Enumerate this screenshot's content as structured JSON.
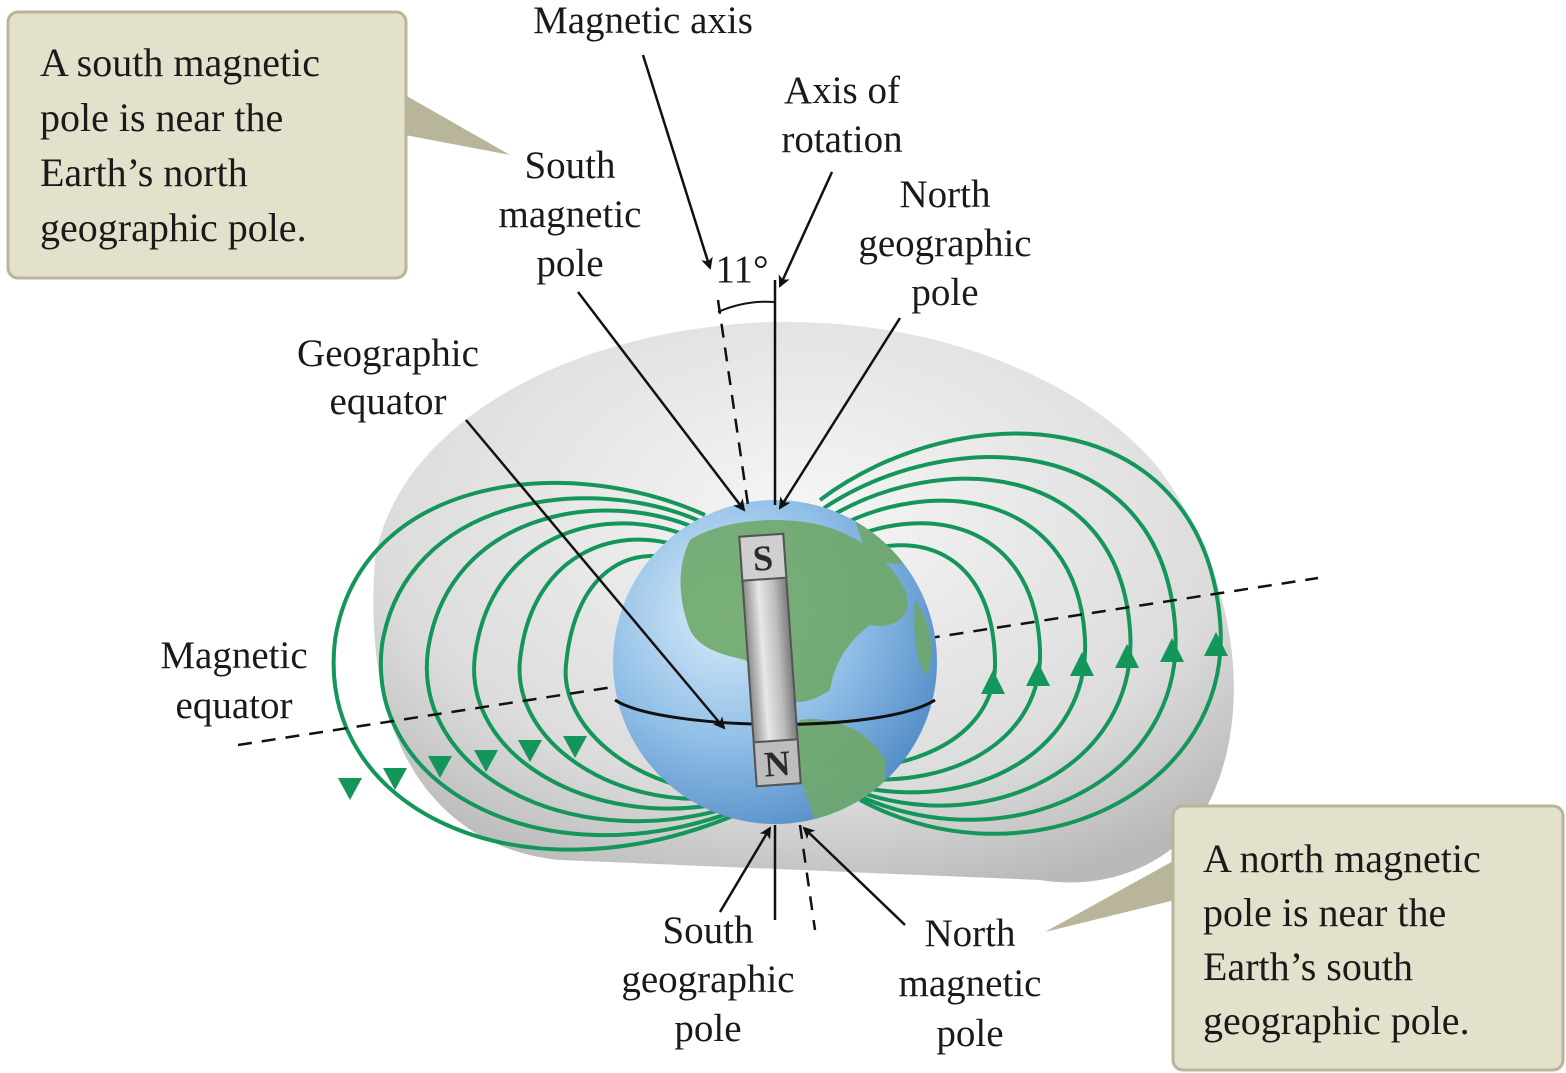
{
  "callouts": {
    "top_left": [
      "A south magnetic",
      "pole is near the",
      "Earth’s north",
      "geographic pole."
    ],
    "bottom_right": [
      "A north magnetic",
      "pole is near the",
      "Earth’s south",
      "geographic pole."
    ]
  },
  "labels": {
    "magnetic_axis": "Magnetic axis",
    "axis_of_rotation": [
      "Axis of",
      "rotation"
    ],
    "south_magnetic_pole": [
      "South",
      "magnetic",
      "pole"
    ],
    "north_geographic_pole": [
      "North",
      "geographic",
      "pole"
    ],
    "geographic_equator": [
      "Geographic",
      "equator"
    ],
    "magnetic_equator": [
      "Magnetic",
      "equator"
    ],
    "south_geographic_pole": [
      "South",
      "geographic",
      "pole"
    ],
    "north_magnetic_pole": [
      "North",
      "magnetic",
      "pole"
    ],
    "angle": "11°"
  },
  "bar_magnet": {
    "top_letter": "S",
    "bottom_letter": "N"
  },
  "colors": {
    "field_lines": "#14955a",
    "callout_fill": "#e3e1cb",
    "callout_border": "#b8b59a",
    "earth_ocean": "#7fb2e0",
    "earth_land": "#6fa86a",
    "shell": "#d2d2d2"
  }
}
